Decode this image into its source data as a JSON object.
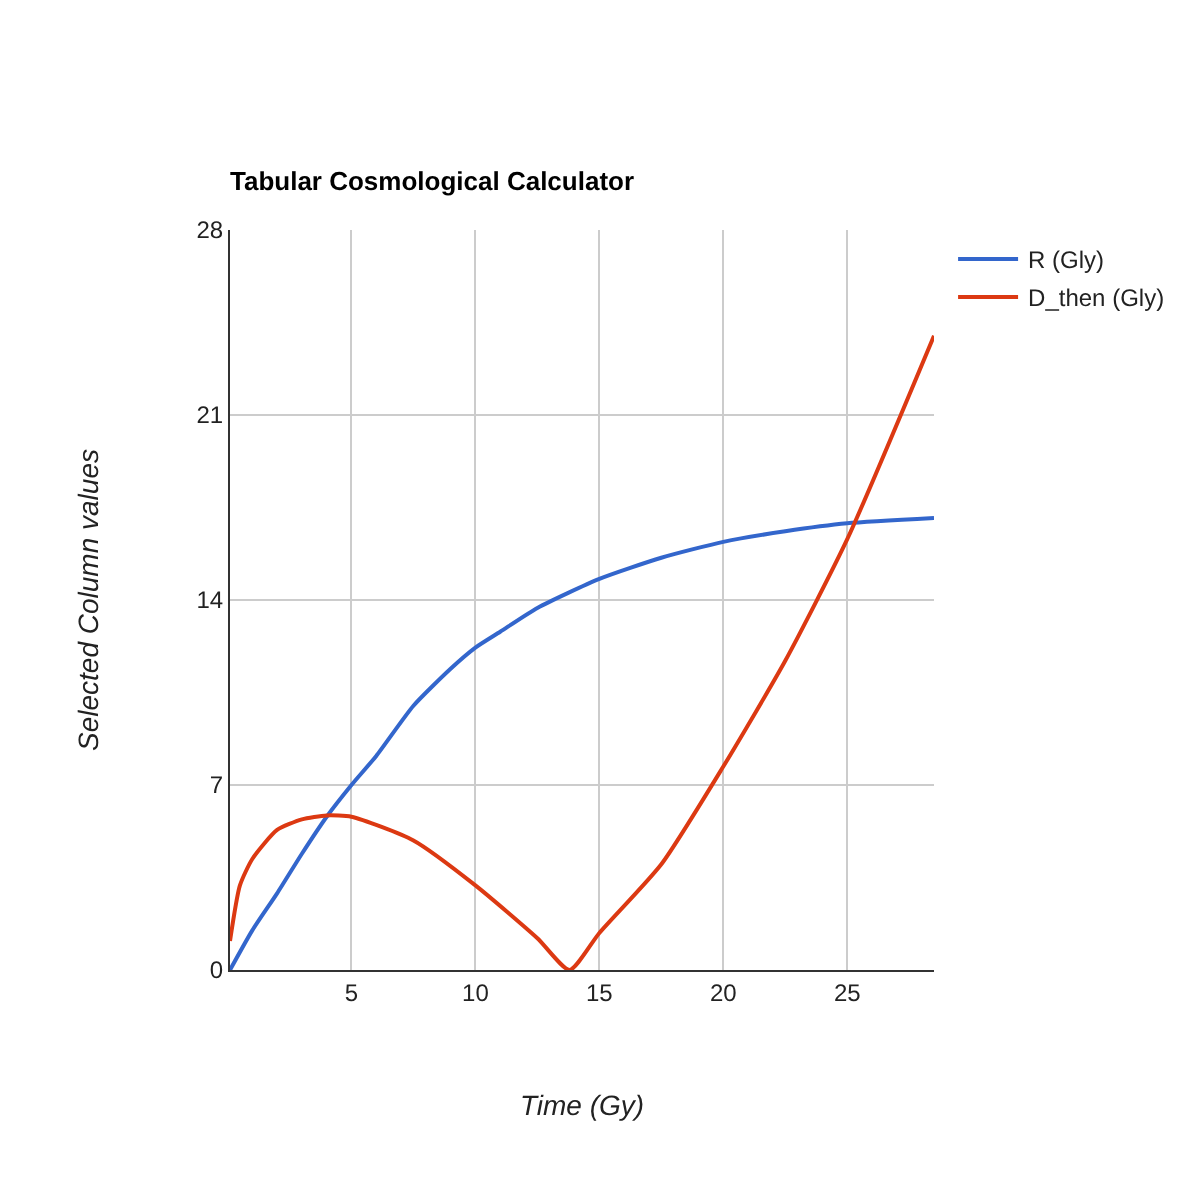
{
  "chart_data": {
    "type": "line",
    "title": "Tabular Cosmological Calculator",
    "xlabel": "Time (Gy)",
    "ylabel": "Selected Column values",
    "xlim": [
      0.1,
      28.5
    ],
    "xticks": [
      5,
      10,
      15,
      20,
      25
    ],
    "ylim": [
      0,
      28
    ],
    "yticks": [
      0,
      7,
      14,
      21,
      28
    ],
    "grid": true,
    "legend": "top right",
    "series": [
      {
        "name": "R (Gly)",
        "color": "#3366cc",
        "x": [
          0.1,
          1,
          2,
          3,
          4,
          5,
          6,
          7.5,
          9,
          10,
          11,
          12.5,
          15,
          17.5,
          20,
          22.5,
          25,
          28.5
        ],
        "values": [
          0,
          1.5,
          2.9,
          4.4,
          5.8,
          7.0,
          8.1,
          10.0,
          11.4,
          12.2,
          12.8,
          13.7,
          14.8,
          15.6,
          16.2,
          16.6,
          16.9,
          17.1
        ]
      },
      {
        "name": "D_then (Gly)",
        "color": "#dc3912",
        "x": [
          0.1,
          0.5,
          1,
          2,
          3,
          4,
          5,
          7.5,
          10,
          12.5,
          13.8,
          15,
          17.5,
          20,
          22.5,
          25,
          28.5
        ],
        "values": [
          1.1,
          3.2,
          4.2,
          5.3,
          5.7,
          5.85,
          5.8,
          4.9,
          3.2,
          1.2,
          0,
          1.4,
          4.0,
          7.7,
          11.7,
          16.3,
          24.0
        ]
      }
    ]
  }
}
